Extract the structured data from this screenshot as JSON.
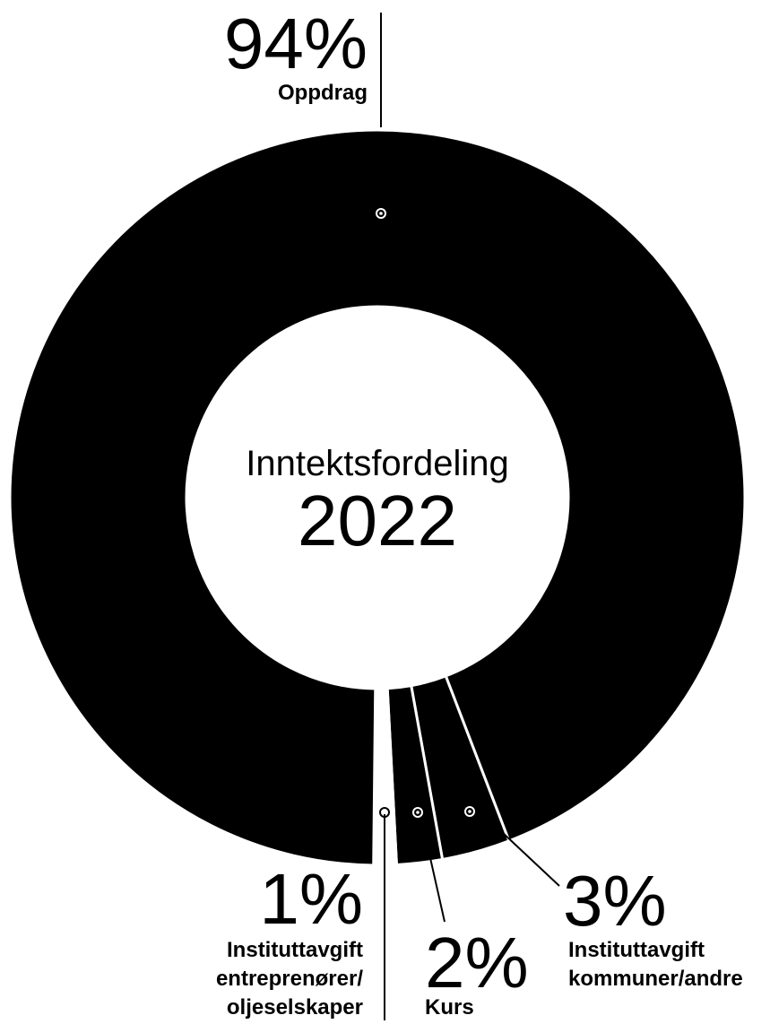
{
  "center": {
    "title": "Inntektsfordeling",
    "year": "2022"
  },
  "chart_data": {
    "type": "pie",
    "title": "Inntektsfordeling 2022",
    "categories": [
      "Oppdrag",
      "Instituttavgift entreprenører/ oljeselskaper",
      "Kurs",
      "Instituttavgift kommuner/andre"
    ],
    "values": [
      94,
      1,
      2,
      3
    ],
    "unit": "%"
  },
  "labels": {
    "oppdrag": {
      "pct": "94%",
      "lines": [
        "Oppdrag"
      ]
    },
    "oljeselskaper": {
      "pct": "1%",
      "lines": [
        "Instituttavgift",
        "entreprenører/",
        "oljeselskaper"
      ]
    },
    "kurs": {
      "pct": "2%",
      "lines": [
        "Kurs"
      ]
    },
    "kommuner": {
      "pct": "3%",
      "lines": [
        "Instituttavgift",
        "kommuner/andre"
      ]
    }
  },
  "colors": {
    "slice": "#000000",
    "separator": "#ffffff",
    "background": "#ffffff"
  }
}
